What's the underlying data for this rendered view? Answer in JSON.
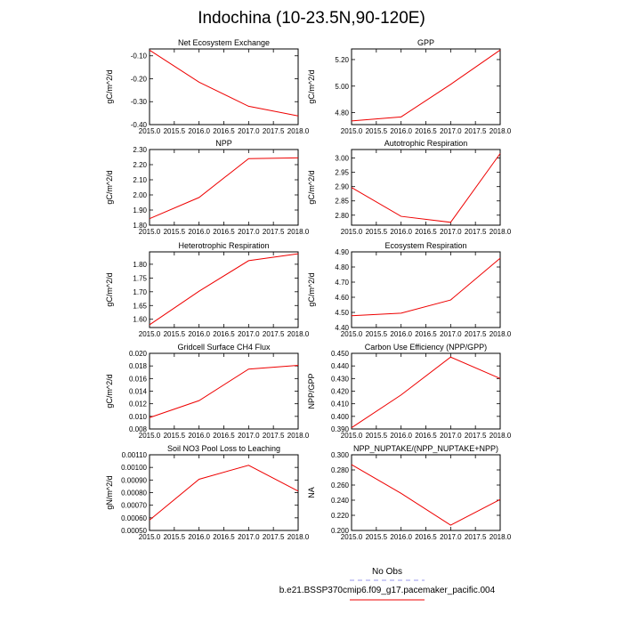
{
  "figure": {
    "title": "Indochina (10-23.5N,90-120E)",
    "legend": {
      "obs_label": "No Obs",
      "model_label": "b.e21.BSSP370cmip6.f09_g17.pacemaker_pacific.004",
      "obs_color": "#9999ee",
      "model_color": "#ee0000"
    },
    "line_color": "#ee0000"
  },
  "chart_data": [
    {
      "type": "line",
      "title": "Net Ecosystem Exchange",
      "ylabel": "gC/m^2/d",
      "x": [
        2015,
        2016,
        2017,
        2018
      ],
      "y": [
        -0.075,
        -0.215,
        -0.32,
        -0.362
      ],
      "xlim": [
        2015,
        2018
      ],
      "ylim": [
        -0.4,
        -0.07
      ],
      "yticks": [
        -0.4,
        -0.3,
        -0.2,
        -0.1
      ],
      "ytick_labels": [
        "-0.40",
        "-0.30",
        "-0.20",
        "-0.10"
      ],
      "xticks": [
        2015,
        2015.5,
        2016,
        2016.5,
        2017,
        2017.5,
        2018
      ],
      "xtick_labels": [
        "2015.0",
        "2015.5",
        "2016.0",
        "2016.5",
        "2017.0",
        "2017.5",
        "2018.0"
      ]
    },
    {
      "type": "line",
      "title": "GPP",
      "ylabel": "gC/m^2/d",
      "x": [
        2015,
        2016,
        2017,
        2018
      ],
      "y": [
        4.738,
        4.768,
        5.013,
        5.272
      ],
      "xlim": [
        2015,
        2018
      ],
      "ylim": [
        4.71,
        5.28
      ],
      "yticks": [
        4.8,
        5.0,
        5.2
      ],
      "ytick_labels": [
        "4.80",
        "5.00",
        "5.20"
      ],
      "xticks": [
        2015,
        2015.5,
        2016,
        2016.5,
        2017,
        2017.5,
        2018
      ],
      "xtick_labels": [
        "2015.0",
        "2015.5",
        "2016.0",
        "2016.5",
        "2017.0",
        "2017.5",
        "2018.0"
      ]
    },
    {
      "type": "line",
      "title": "NPP",
      "ylabel": "gC/m^2/d",
      "x": [
        2015,
        2016,
        2017,
        2018
      ],
      "y": [
        1.843,
        1.983,
        2.24,
        2.245
      ],
      "xlim": [
        2015,
        2018
      ],
      "ylim": [
        1.8,
        2.3
      ],
      "yticks": [
        1.8,
        1.9,
        2.0,
        2.1,
        2.2,
        2.3
      ],
      "ytick_labels": [
        "1.80",
        "1.90",
        "2.00",
        "2.10",
        "2.20",
        "2.30"
      ],
      "xticks": [
        2015,
        2015.5,
        2016,
        2016.5,
        2017,
        2017.5,
        2018
      ],
      "xtick_labels": [
        "2015.0",
        "2015.5",
        "2016.0",
        "2016.5",
        "2017.0",
        "2017.5",
        "2018.0"
      ]
    },
    {
      "type": "line",
      "title": "Autotrophic Respiration",
      "ylabel": "gC/m^2/d",
      "x": [
        2015,
        2016,
        2017,
        2018
      ],
      "y": [
        2.897,
        2.796,
        2.775,
        3.016
      ],
      "xlim": [
        2015,
        2018
      ],
      "ylim": [
        2.765,
        3.03
      ],
      "yticks": [
        2.8,
        2.85,
        2.9,
        2.95,
        3.0
      ],
      "ytick_labels": [
        "2.80",
        "2.85",
        "2.90",
        "2.95",
        "3.00"
      ],
      "xticks": [
        2015,
        2015.5,
        2016,
        2016.5,
        2017,
        2017.5,
        2018
      ],
      "xtick_labels": [
        "2015.0",
        "2015.5",
        "2016.0",
        "2016.5",
        "2017.0",
        "2017.5",
        "2018.0"
      ]
    },
    {
      "type": "line",
      "title": "Heterotrophic Respiration",
      "ylabel": "gC/m^2/d",
      "x": [
        2015,
        2016,
        2017,
        2018
      ],
      "y": [
        1.58,
        1.702,
        1.813,
        1.838
      ],
      "xlim": [
        2015,
        2018
      ],
      "ylim": [
        1.57,
        1.845
      ],
      "yticks": [
        1.6,
        1.65,
        1.7,
        1.75,
        1.8
      ],
      "ytick_labels": [
        "1.60",
        "1.65",
        "1.70",
        "1.75",
        "1.80"
      ],
      "xticks": [
        2015,
        2015.5,
        2016,
        2016.5,
        2017,
        2017.5,
        2018
      ],
      "xtick_labels": [
        "2015.0",
        "2015.5",
        "2016.0",
        "2016.5",
        "2017.0",
        "2017.5",
        "2018.0"
      ]
    },
    {
      "type": "line",
      "title": "Ecosystem Respiration",
      "ylabel": "gC/m^2/d",
      "x": [
        2015,
        2016,
        2017,
        2018
      ],
      "y": [
        4.478,
        4.495,
        4.582,
        4.858
      ],
      "xlim": [
        2015,
        2018
      ],
      "ylim": [
        4.4,
        4.9
      ],
      "yticks": [
        4.4,
        4.5,
        4.6,
        4.7,
        4.8,
        4.9
      ],
      "ytick_labels": [
        "4.40",
        "4.50",
        "4.60",
        "4.70",
        "4.80",
        "4.90"
      ],
      "xticks": [
        2015,
        2015.5,
        2016,
        2016.5,
        2017,
        2017.5,
        2018
      ],
      "xtick_labels": [
        "2015.0",
        "2015.5",
        "2016.0",
        "2016.5",
        "2017.0",
        "2017.5",
        "2018.0"
      ]
    },
    {
      "type": "line",
      "title": "Gridcell Surface CH4 Flux",
      "ylabel": "gC/m^2/d",
      "x": [
        2015,
        2016,
        2017,
        2018
      ],
      "y": [
        0.0098,
        0.0125,
        0.0175,
        0.0181
      ],
      "xlim": [
        2015,
        2018
      ],
      "ylim": [
        0.008,
        0.02
      ],
      "yticks": [
        0.008,
        0.01,
        0.012,
        0.014,
        0.016,
        0.018,
        0.02
      ],
      "ytick_labels": [
        "0.008",
        "0.010",
        "0.012",
        "0.014",
        "0.016",
        "0.018",
        "0.020"
      ],
      "xticks": [
        2015,
        2015.5,
        2016,
        2016.5,
        2017,
        2017.5,
        2018
      ],
      "xtick_labels": [
        "2015.0",
        "2015.5",
        "2016.0",
        "2016.5",
        "2017.0",
        "2017.5",
        "2018.0"
      ]
    },
    {
      "type": "line",
      "title": "Carbon Use Efficiency (NPP/GPP)",
      "ylabel": "NPP/GPP",
      "x": [
        2015,
        2016,
        2017,
        2018
      ],
      "y": [
        0.391,
        0.417,
        0.447,
        0.43
      ],
      "xlim": [
        2015,
        2018
      ],
      "ylim": [
        0.39,
        0.45
      ],
      "yticks": [
        0.39,
        0.4,
        0.41,
        0.42,
        0.43,
        0.44,
        0.45
      ],
      "ytick_labels": [
        "0.390",
        "0.400",
        "0.410",
        "0.420",
        "0.430",
        "0.440",
        "0.450"
      ],
      "xticks": [
        2015,
        2015.5,
        2016,
        2016.5,
        2017,
        2017.5,
        2018
      ],
      "xtick_labels": [
        "2015.0",
        "2015.5",
        "2016.0",
        "2016.5",
        "2017.0",
        "2017.5",
        "2018.0"
      ]
    },
    {
      "type": "line",
      "title": "Soil NO3 Pool Loss to Leaching",
      "ylabel": "gN/m^2/d",
      "x": [
        2015,
        2016,
        2017,
        2018
      ],
      "y": [
        0.000582,
        0.000906,
        0.001017,
        0.000812
      ],
      "xlim": [
        2015,
        2018
      ],
      "ylim": [
        0.0005,
        0.0011
      ],
      "yticks": [
        0.0005,
        0.0006,
        0.0007,
        0.0008,
        0.0009,
        0.001,
        0.0011
      ],
      "ytick_labels": [
        "0.00050",
        "0.00060",
        "0.00070",
        "0.00080",
        "0.00090",
        "0.00100",
        "0.00110"
      ],
      "xticks": [
        2015,
        2015.5,
        2016,
        2016.5,
        2017,
        2017.5,
        2018
      ],
      "xtick_labels": [
        "2015.0",
        "2015.5",
        "2016.0",
        "2016.5",
        "2017.0",
        "2017.5",
        "2018.0"
      ]
    },
    {
      "type": "line",
      "title": "NPP_NUPTAKE/(NPP_NUPTAKE+NPP)",
      "ylabel": "NA",
      "x": [
        2015,
        2016,
        2017,
        2018
      ],
      "y": [
        0.287,
        0.249,
        0.207,
        0.241
      ],
      "xlim": [
        2015,
        2018
      ],
      "ylim": [
        0.2,
        0.3
      ],
      "yticks": [
        0.2,
        0.22,
        0.24,
        0.26,
        0.28,
        0.3
      ],
      "ytick_labels": [
        "0.200",
        "0.220",
        "0.240",
        "0.260",
        "0.280",
        "0.300"
      ],
      "xticks": [
        2015,
        2015.5,
        2016,
        2016.5,
        2017,
        2017.5,
        2018
      ],
      "xtick_labels": [
        "2015.0",
        "2015.5",
        "2016.0",
        "2016.5",
        "2017.0",
        "2017.5",
        "2018.0"
      ]
    }
  ]
}
